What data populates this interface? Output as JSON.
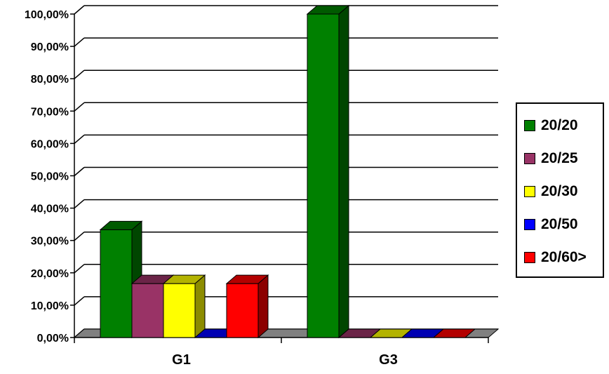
{
  "chart_data": {
    "type": "bar",
    "categories": [
      "G1",
      "G3"
    ],
    "series": [
      {
        "name": "20/20",
        "color": "#008000",
        "values": [
          33.33,
          100
        ]
      },
      {
        "name": "20/25",
        "color": "#993366",
        "values": [
          16.67,
          0
        ]
      },
      {
        "name": "20/30",
        "color": "#FFFF00",
        "values": [
          16.67,
          0
        ]
      },
      {
        "name": "20/50",
        "color": "#0000FF",
        "values": [
          0,
          0
        ]
      },
      {
        "name": "20/60>",
        "color": "#FF0000",
        "values": [
          16.67,
          0
        ]
      }
    ],
    "ylim": [
      0,
      100
    ],
    "yticks": [
      "0,00%",
      "10,00%",
      "20,00%",
      "30,00%",
      "40,00%",
      "50,00%",
      "60,00%",
      "70,00%",
      "80,00%",
      "90,00%",
      "100,00%"
    ],
    "grid": true,
    "legend_position": "right",
    "floor_color": "#808080"
  }
}
